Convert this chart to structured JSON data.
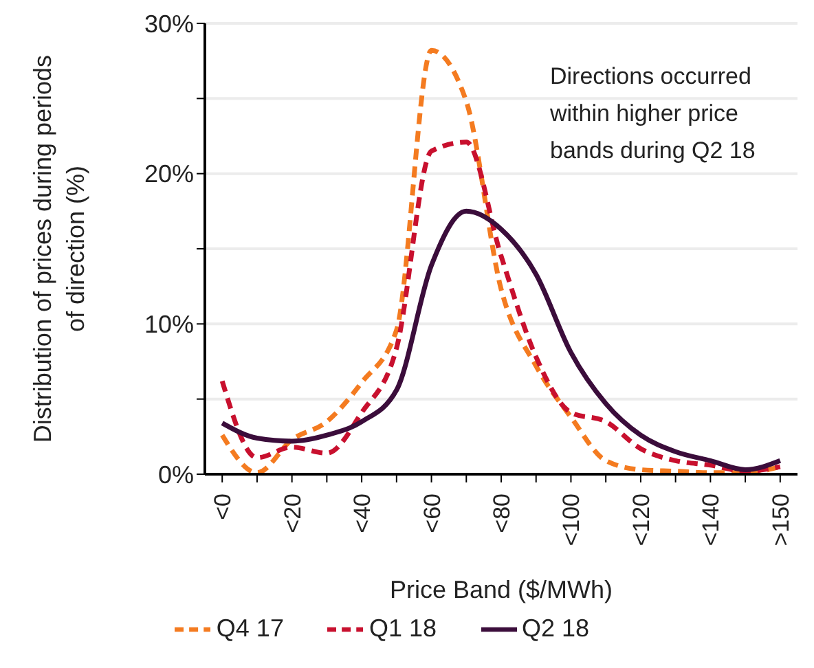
{
  "chart_data": {
    "type": "line",
    "xlabel": "Price Band ($/MWh)",
    "ylabel": "Distribution of prices during periods of direction (%)",
    "categories": [
      "<0",
      null,
      "<20",
      null,
      "<40",
      null,
      "<60",
      null,
      "<80",
      null,
      "<100",
      null,
      "<120",
      null,
      "<140",
      null,
      ">150"
    ],
    "series": [
      {
        "name": "Q4 17",
        "color": "#f47b20",
        "line_style": "dashed",
        "values": [
          2.6,
          0.1,
          2.3,
          3.5,
          6.1,
          9.6,
          28.2,
          24.8,
          12.3,
          7.2,
          3.8,
          0.9,
          0.3,
          0.2,
          0.1,
          0.1,
          0.5
        ]
      },
      {
        "name": "Q1 18",
        "color": "#c8102e",
        "line_style": "dashed",
        "values": [
          6.2,
          1.1,
          1.8,
          1.4,
          4.1,
          8.4,
          21.5,
          22.1,
          14.5,
          7.8,
          4.1,
          3.5,
          1.7,
          0.9,
          0.6,
          0.2,
          0.5
        ]
      },
      {
        "name": "Q2 18",
        "color": "#3b0d3b",
        "line_style": "solid",
        "values": [
          3.4,
          2.4,
          2.2,
          2.6,
          3.5,
          5.6,
          13.9,
          17.5,
          16.3,
          13.3,
          8.1,
          4.7,
          2.6,
          1.5,
          0.9,
          0.3,
          0.9
        ]
      }
    ],
    "ylim": [
      0,
      30
    ],
    "yticks": [
      {
        "value": 0,
        "label": "0%"
      },
      {
        "value": 5,
        "label": null
      },
      {
        "value": 10,
        "label": "10%"
      },
      {
        "value": 15,
        "label": null
      },
      {
        "value": 20,
        "label": "20%"
      },
      {
        "value": 25,
        "label": null
      },
      {
        "value": 30,
        "label": "30%"
      }
    ],
    "grid": "y",
    "legend": "bottom",
    "marker": "none",
    "annotations": [
      "Directions occurred within higher price bands during Q2 18"
    ]
  }
}
